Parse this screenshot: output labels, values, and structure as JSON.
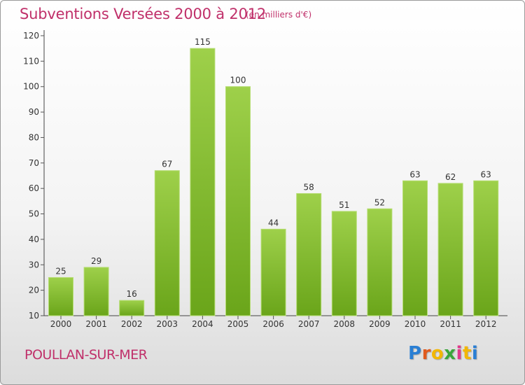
{
  "header": {
    "title": "Subventions Versées 2000 à 2012",
    "unit_note": "(en milliers d'€)"
  },
  "footer": {
    "commune": "POULLAN-SUR-MER",
    "logo_text": "Proxiti",
    "logo_colors": [
      "#2a7fd4",
      "#e05a1e",
      "#f2b705",
      "#3aa63a",
      "#e03a8a",
      "#f2b705",
      "#2a7fd4"
    ]
  },
  "colors": {
    "title": "#c0306a",
    "bar_light": "#9ed04a",
    "bar_dark": "#6aa51a",
    "bar_edge": "#b5dd72",
    "axis": "#444444",
    "grid_tick": "#555555"
  },
  "chart_data": {
    "type": "bar",
    "categories": [
      "2000",
      "2001",
      "2002",
      "2003",
      "2004",
      "2005",
      "2006",
      "2007",
      "2008",
      "2009",
      "2010",
      "2011",
      "2012"
    ],
    "values": [
      25,
      29,
      16,
      67,
      115,
      100,
      44,
      58,
      51,
      52,
      63,
      62,
      63
    ],
    "data_labels": [
      "25",
      "29",
      "16",
      "67",
      "115",
      "100",
      "44",
      "58",
      "51",
      "52",
      "63",
      "62",
      "63"
    ],
    "yticks": [
      10,
      20,
      30,
      40,
      50,
      60,
      70,
      80,
      90,
      100,
      110,
      120
    ],
    "ylim": [
      10,
      120
    ],
    "grid": false,
    "legend": "none"
  }
}
